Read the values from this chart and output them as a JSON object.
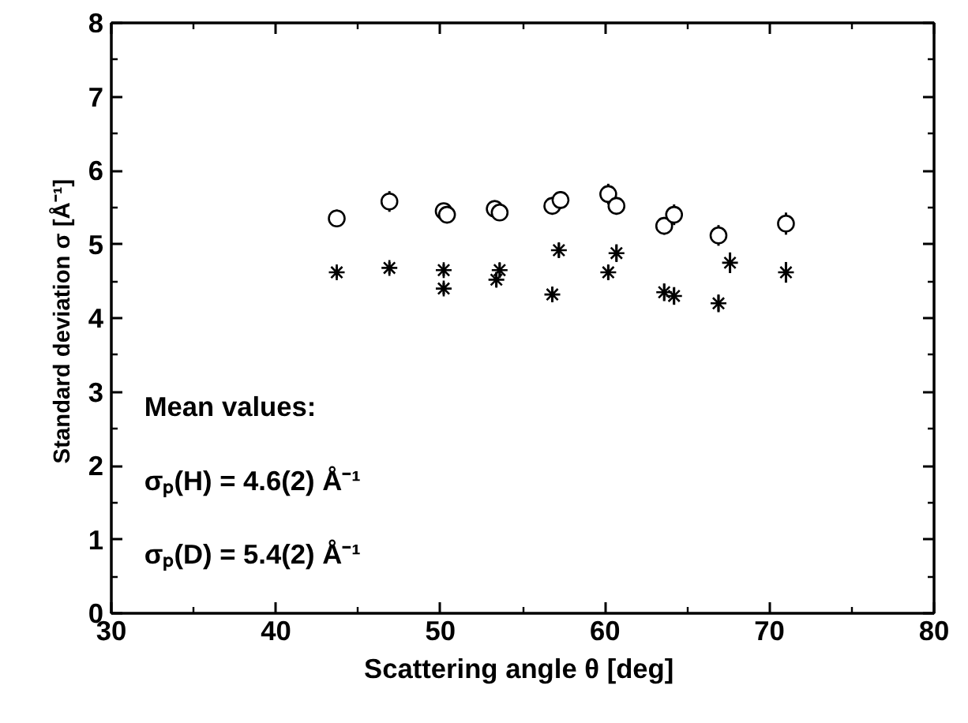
{
  "chart_data": {
    "type": "scatter",
    "xlabel": "Scattering angle θ  [deg]",
    "ylabel": "Standard deviation σ  [Å⁻¹]",
    "xlim": [
      30,
      80
    ],
    "xticks": [
      30,
      40,
      50,
      60,
      70,
      80
    ],
    "ylim": [
      0,
      8
    ],
    "yticks": [
      0,
      1,
      2,
      3,
      4,
      5,
      6,
      7,
      8
    ],
    "grid": false,
    "annotations": [
      "Mean values:",
      "σₚ(H) = 4.6(2)  Å⁻¹",
      "σₚ(D) = 5.4(2)  Å⁻¹"
    ],
    "series": [
      {
        "color": "#000000",
        "marker": "circle",
        "x": [
          43.7,
          46.9,
          50.2,
          50.4,
          53.3,
          53.6,
          56.8,
          57.3,
          60.2,
          60.7,
          63.6,
          64.2,
          66.9,
          71.0
        ],
        "values": [
          5.35,
          5.58,
          5.45,
          5.4,
          5.48,
          5.43,
          5.52,
          5.6,
          5.68,
          5.52,
          5.25,
          5.4,
          5.12,
          5.28
        ],
        "errors": [
          0.12,
          0.14,
          0.1,
          0.1,
          0.1,
          0.1,
          0.12,
          0.12,
          0.14,
          0.12,
          0.12,
          0.14,
          0.14,
          0.15
        ]
      },
      {
        "color": "#000000",
        "marker": "cross",
        "x": [
          43.7,
          46.9,
          50.2,
          50.2,
          53.4,
          53.6,
          56.8,
          57.2,
          60.2,
          60.7,
          63.6,
          64.2,
          66.9,
          67.6,
          71.0
        ],
        "values": [
          4.62,
          4.68,
          4.65,
          4.4,
          4.52,
          4.65,
          4.32,
          4.92,
          4.62,
          4.88,
          4.35,
          4.3,
          4.2,
          4.75,
          4.62
        ],
        "errors": [
          0.08,
          0.08,
          0.08,
          0.08,
          0.1,
          0.1,
          0.1,
          0.1,
          0.1,
          0.12,
          0.12,
          0.12,
          0.12,
          0.14,
          0.14
        ]
      }
    ]
  }
}
